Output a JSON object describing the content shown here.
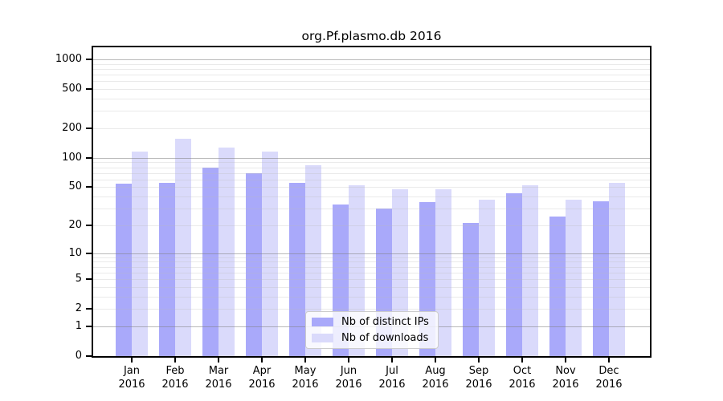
{
  "chart_data": {
    "type": "bar",
    "title": "org.Pf.plasmo.db 2016",
    "categories": [
      "Jan",
      "Feb",
      "Mar",
      "Apr",
      "May",
      "Jun",
      "Jul",
      "Aug",
      "Sep",
      "Oct",
      "Nov",
      "Dec"
    ],
    "x_tick_second_line": "2016",
    "series": [
      {
        "name": "Nb of distinct IPs",
        "color": "#a9a9fa",
        "values": [
          54,
          56,
          80,
          70,
          55,
          33,
          30,
          35,
          21,
          43,
          25,
          36
        ]
      },
      {
        "name": "Nb of downloads",
        "color": "#dadafb",
        "values": [
          117,
          156,
          127,
          116,
          84,
          52,
          48,
          48,
          37,
          52,
          37,
          55
        ]
      }
    ],
    "ylabel": "",
    "xlabel": "",
    "y_ticks": [
      0,
      1,
      2,
      5,
      10,
      20,
      50,
      100,
      200,
      500,
      1000
    ],
    "ylim": [
      0,
      1000
    ],
    "y_scale": "log10(1+x)",
    "grid": true,
    "legend_position": "lower center inside plot",
    "colors": {
      "axis": "#000000",
      "major_grid": "#828282",
      "minor_grid": "#b9b9b9",
      "background": "#ffffff"
    }
  }
}
